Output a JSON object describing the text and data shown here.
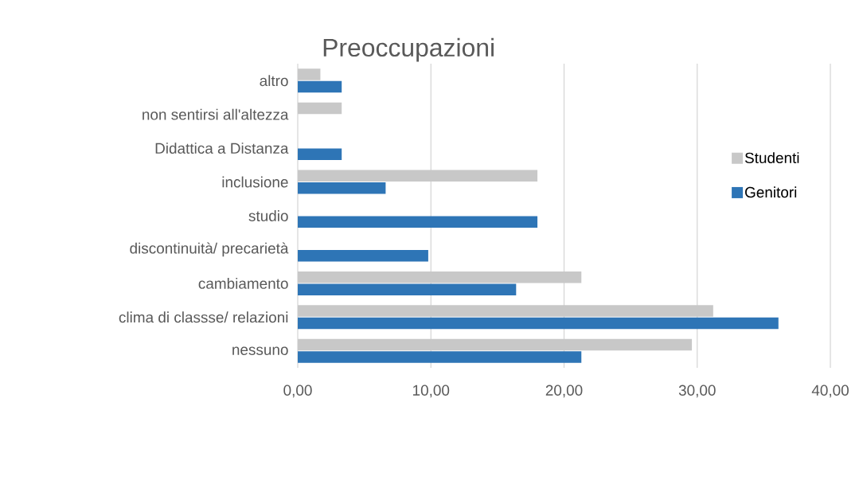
{
  "chart_data": {
    "type": "bar",
    "orientation": "horizontal",
    "title": "Preoccupazioni",
    "categories": [
      "altro",
      "non sentirsi all'altezza",
      "Didattica a Distanza",
      "inclusione",
      "studio",
      "discontinuità/ precarietà",
      "cambiamento",
      "clima di classse/ relazioni",
      "nessuno"
    ],
    "series": [
      {
        "name": "Genitori",
        "color": "#2e75b6",
        "values": [
          3.3,
          0,
          3.3,
          6.6,
          18.0,
          9.8,
          16.4,
          36.1,
          21.3
        ]
      },
      {
        "name": "Studenti",
        "color": "#c8c8c8",
        "values": [
          1.7,
          3.3,
          0,
          18.0,
          0,
          0,
          21.3,
          31.2,
          29.6
        ]
      }
    ],
    "xlim": [
      0,
      40
    ],
    "xticks": [
      {
        "value": 0,
        "label": "0,00"
      },
      {
        "value": 10,
        "label": "10,00"
      },
      {
        "value": 20,
        "label": "20,00"
      },
      {
        "value": 30,
        "label": "30,00"
      },
      {
        "value": 40,
        "label": "40,00"
      }
    ],
    "grid": "x",
    "legend": "right"
  }
}
